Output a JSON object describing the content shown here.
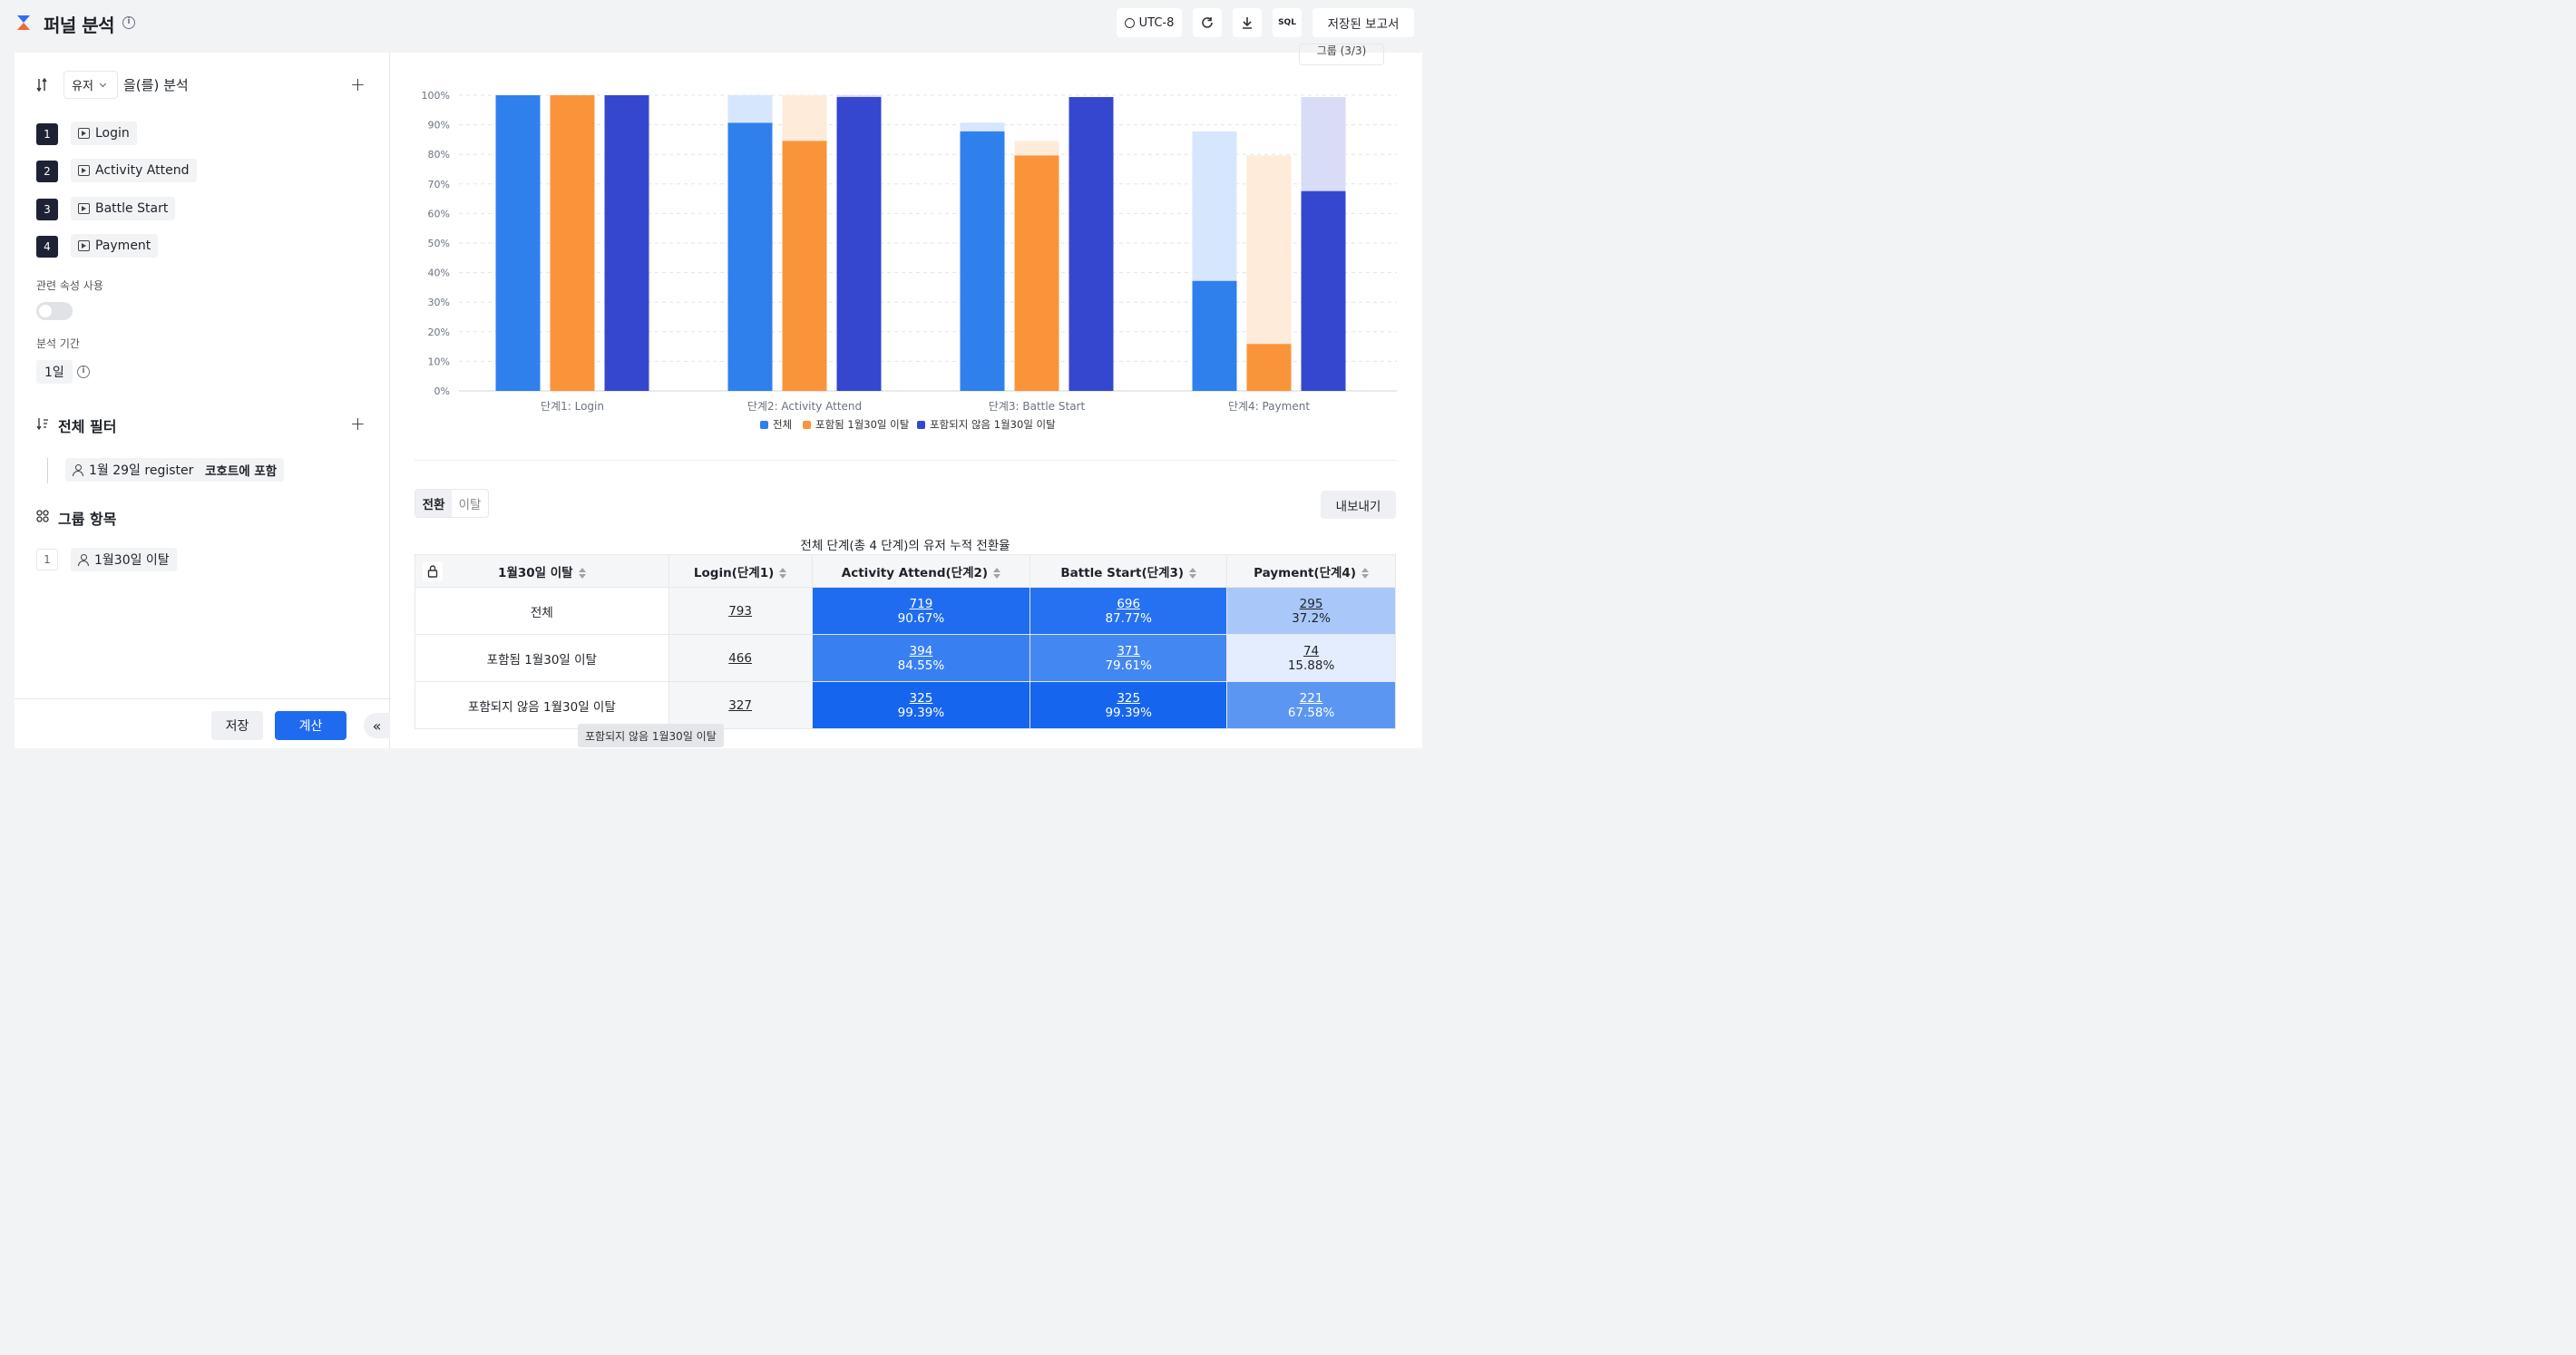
{
  "header": {
    "title": "퍼널 분석",
    "timezone": "UTC-8",
    "sql_label": "SQL",
    "saved_reports": "저장된 보고서"
  },
  "left": {
    "analyze_subject": "유저",
    "analyze_suffix": "을(를) 분석",
    "steps": [
      {
        "num": "1",
        "label": "Login"
      },
      {
        "num": "2",
        "label": "Activity Attend"
      },
      {
        "num": "3",
        "label": "Battle Start"
      },
      {
        "num": "4",
        "label": "Payment"
      }
    ],
    "related_attr_label": "관련 속성 사용",
    "period_label": "분석 기간",
    "period_value": "1일",
    "filter_title": "전체 필터",
    "filter_item": "1월 29일 register",
    "filter_cond": "코호트에 포함",
    "group_title": "그룹 항목",
    "group_num": "1",
    "group_item": "1월30일 이탈",
    "save_label": "저장",
    "calc_label": "계산",
    "collapse_label": "«"
  },
  "right": {
    "legend_top_partial": "그룹 (3/3)",
    "tabs": [
      "전환",
      "이탈"
    ],
    "export_label": "내보내기",
    "table_title": "전체 단계(총 4 단계)의 유저 누적 전환율",
    "tooltip": "포함되지 않음 1월30일 이탈"
  },
  "colors": {
    "blue": "#2f80ed",
    "orange": "#fa943a",
    "indigo": "#3547cf",
    "blue_light": "#d6e6fc",
    "orange_light": "#feebd9",
    "indigo_light": "#d9dcf6"
  },
  "chart_data": {
    "type": "bar",
    "categories": [
      "단계1: Login",
      "단계2: Activity Attend",
      "단계3: Battle Start",
      "단계4: Payment"
    ],
    "y_ticks": [
      "0%",
      "10%",
      "20%",
      "30%",
      "40%",
      "50%",
      "60%",
      "70%",
      "80%",
      "90%",
      "100%"
    ],
    "ylim": [
      0,
      100
    ],
    "grid": true,
    "legend_position": "bottom",
    "series": [
      {
        "name": "전체",
        "values": [
          100,
          90.67,
          87.77,
          37.2
        ],
        "prev_step": [
          100,
          100,
          90.67,
          87.77
        ]
      },
      {
        "name": "포함됨 1월30일 이탈",
        "values": [
          100,
          84.55,
          79.61,
          15.88
        ],
        "prev_step": [
          100,
          100,
          84.55,
          79.61
        ]
      },
      {
        "name": "포함되지 않음 1월30일 이탈",
        "values": [
          100,
          99.39,
          99.39,
          67.58
        ],
        "prev_step": [
          100,
          100,
          99.39,
          99.39
        ]
      }
    ]
  },
  "table": {
    "headers": [
      "1월30일 이탈",
      "Login(단계1)",
      "Activity Attend(단계2)",
      "Battle Start(단계3)",
      "Payment(단계4)"
    ],
    "rows": [
      {
        "name": "전체",
        "login": "793",
        "cells": [
          {
            "count": "719",
            "pct": "90.67%"
          },
          {
            "count": "696",
            "pct": "87.77%"
          },
          {
            "count": "295",
            "pct": "37.2%"
          }
        ]
      },
      {
        "name": "포함됨 1월30일 이탈",
        "login": "466",
        "cells": [
          {
            "count": "394",
            "pct": "84.55%"
          },
          {
            "count": "371",
            "pct": "79.61%"
          },
          {
            "count": "74",
            "pct": "15.88%"
          }
        ]
      },
      {
        "name": "포함되지 않음 1월30일 이탈",
        "login": "327",
        "cells": [
          {
            "count": "325",
            "pct": "99.39%"
          },
          {
            "count": "325",
            "pct": "99.39%"
          },
          {
            "count": "221",
            "pct": "67.58%"
          }
        ]
      }
    ]
  }
}
